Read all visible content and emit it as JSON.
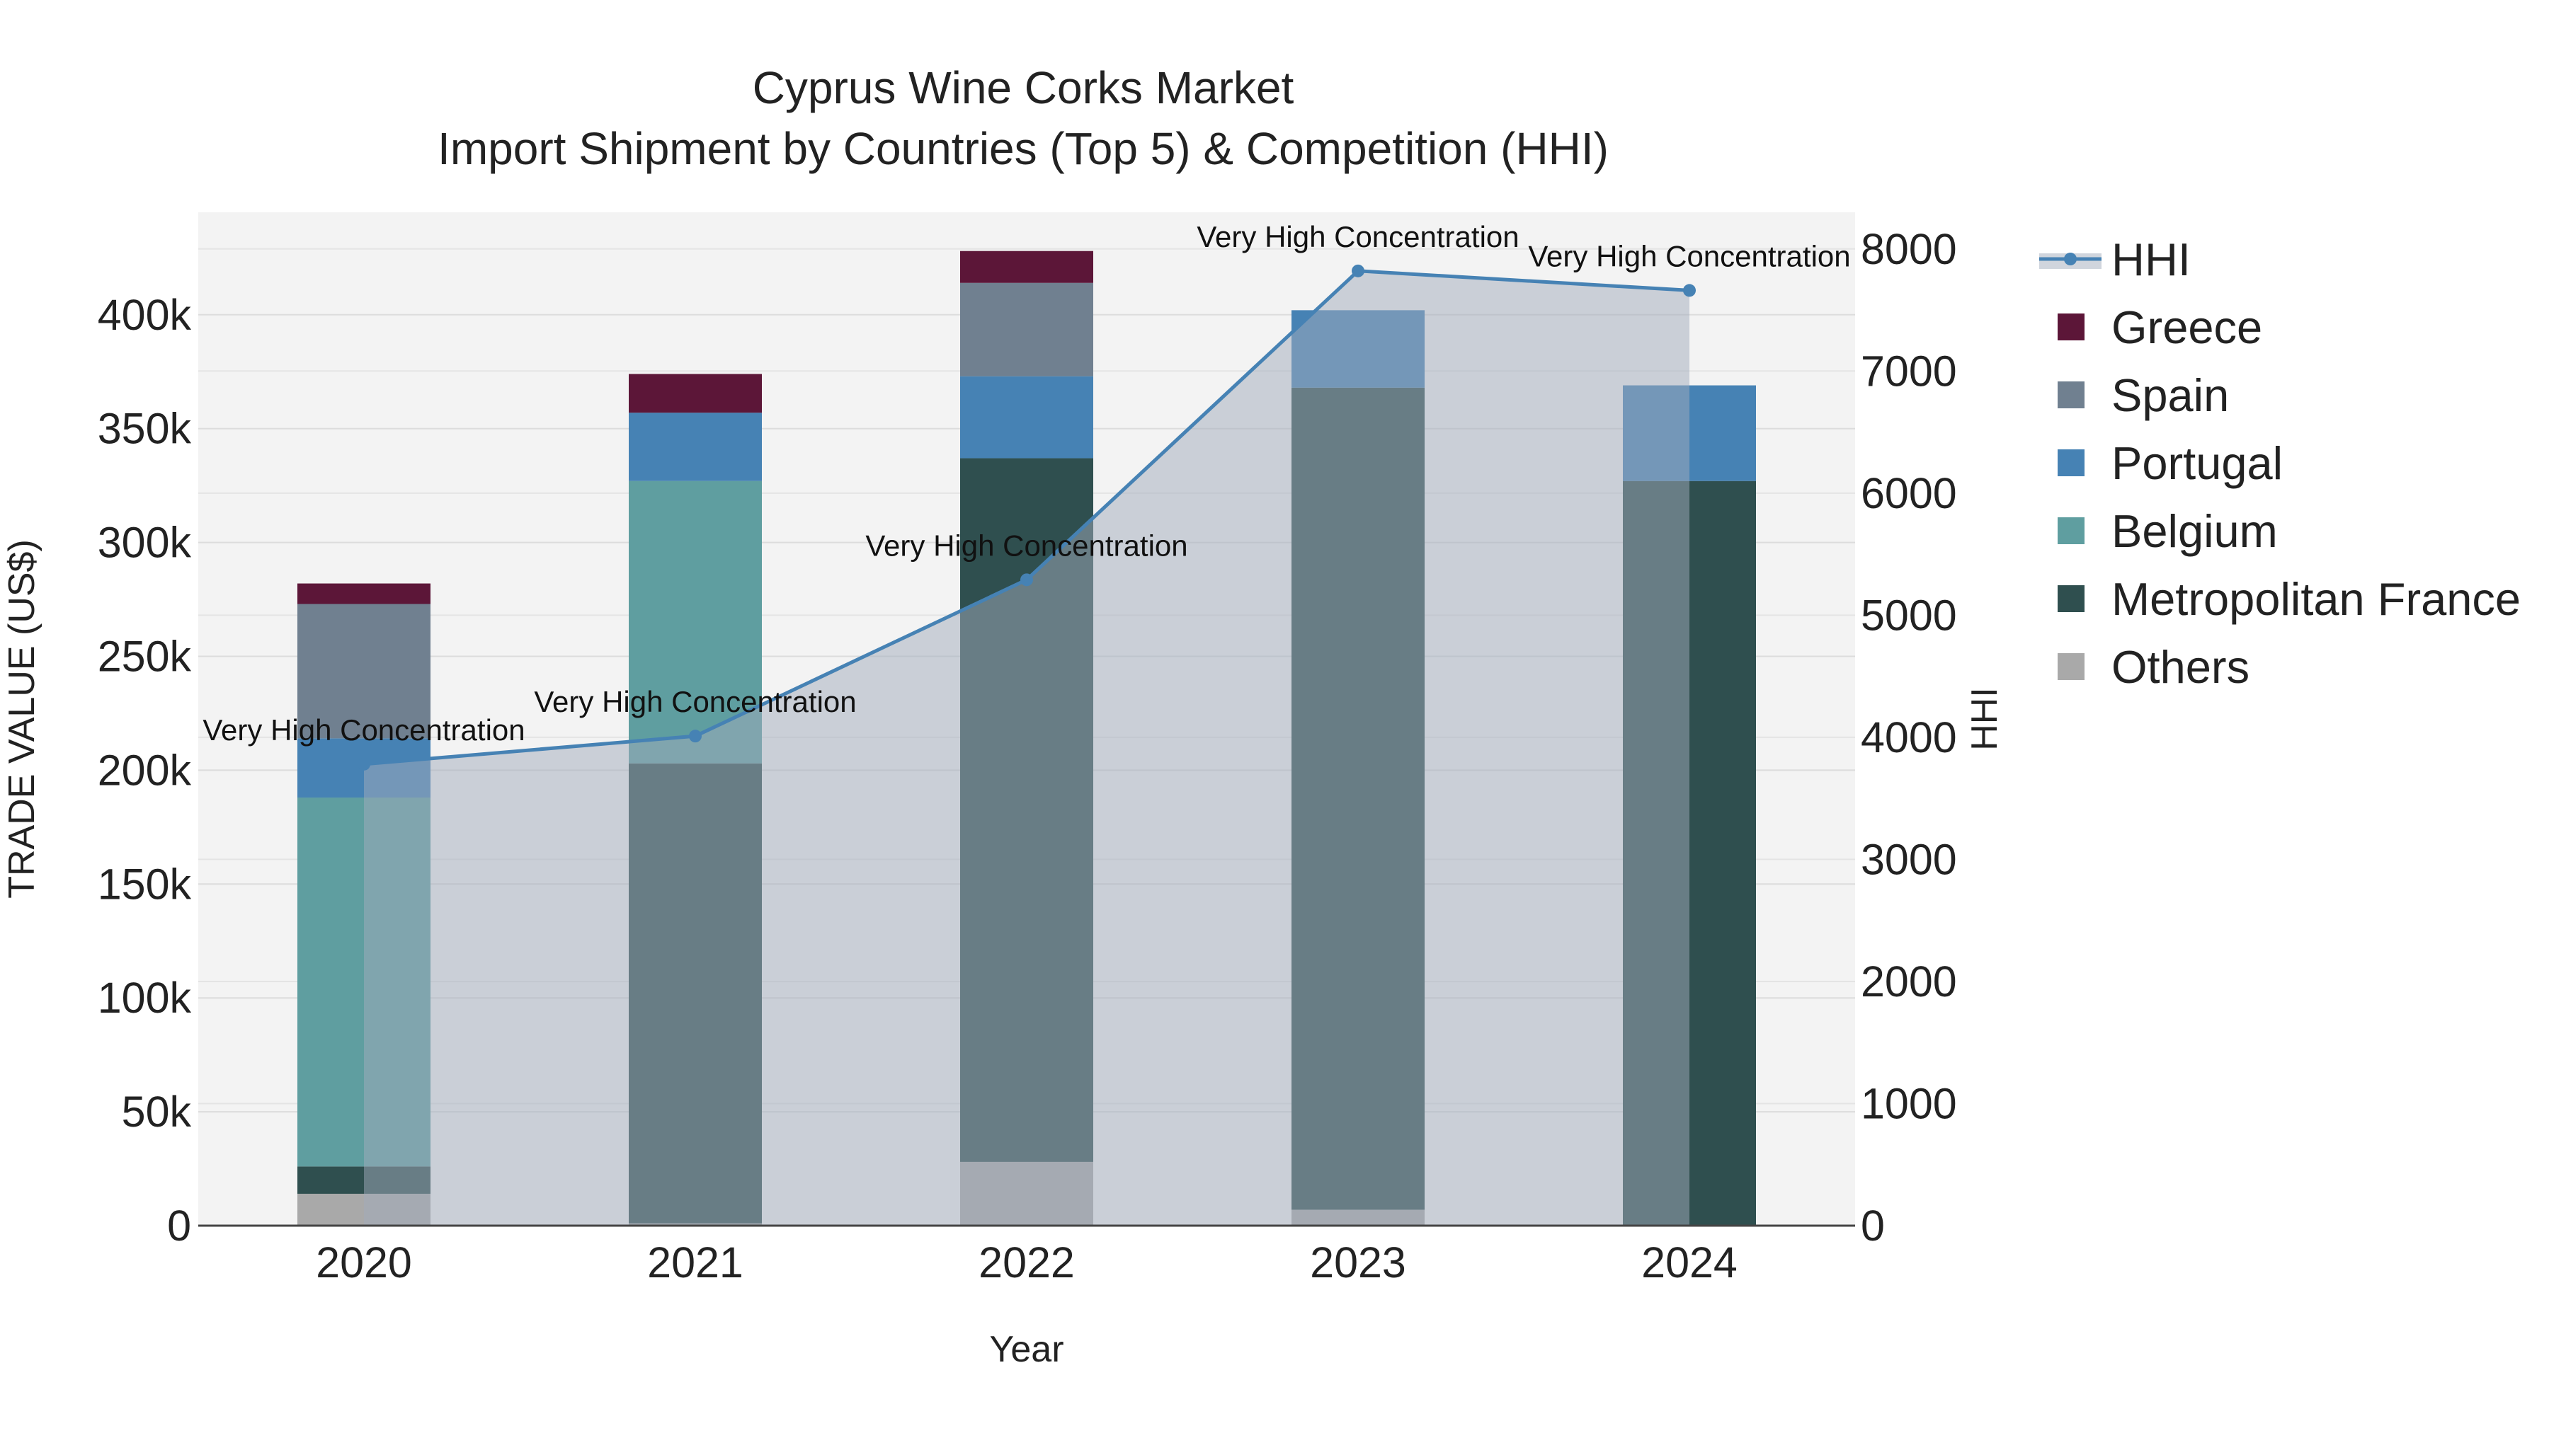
{
  "chart_data": {
    "type": "bar",
    "title_line1": "Cyprus Wine Corks Market",
    "title_line2": "Import Shipment by Countries (Top 5) & Competition (HHI)",
    "xlabel": "Year",
    "ylabel": "TRADE VALUE (US$)",
    "y2label": "HHI",
    "categories": [
      "2020",
      "2021",
      "2022",
      "2023",
      "2024"
    ],
    "ylim": [
      0,
      445000
    ],
    "y2lim": [
      0,
      8300
    ],
    "yticks": [
      0,
      50000,
      100000,
      150000,
      200000,
      250000,
      300000,
      350000,
      400000
    ],
    "yticklabels": [
      "0",
      "50k",
      "100k",
      "150k",
      "200k",
      "250k",
      "300k",
      "350k",
      "400k"
    ],
    "y2ticks": [
      0,
      1000,
      2000,
      3000,
      4000,
      5000,
      6000,
      7000,
      8000
    ],
    "y2ticklabels": [
      "0",
      "1000",
      "2000",
      "3000",
      "4000",
      "5000",
      "6000",
      "7000",
      "8000"
    ],
    "grid": true,
    "legend_position": "right",
    "series": [
      {
        "name": "Others",
        "color": "#a9a9a9",
        "values": [
          14000,
          1000,
          28000,
          7000,
          0
        ]
      },
      {
        "name": "Metropolitan France",
        "color": "#2f4f4f",
        "values": [
          12000,
          202000,
          309000,
          361000,
          327000
        ]
      },
      {
        "name": "Belgium",
        "color": "#5f9ea0",
        "values": [
          162000,
          124000,
          0,
          0,
          0
        ]
      },
      {
        "name": "Portugal",
        "color": "#4682b4",
        "values": [
          26000,
          30000,
          36000,
          34000,
          42000
        ]
      },
      {
        "name": "Spain",
        "color": "#708090",
        "values": [
          59000,
          0,
          41000,
          0,
          0
        ]
      },
      {
        "name": "Greece",
        "color": "#5c1638",
        "values": [
          9000,
          17000,
          14000,
          0,
          0
        ]
      }
    ],
    "hhi": {
      "name": "HHI",
      "color": "#4682b4",
      "values": [
        3780,
        4010,
        5290,
        7820,
        7660
      ],
      "annotation": "Very High Concentration"
    }
  }
}
